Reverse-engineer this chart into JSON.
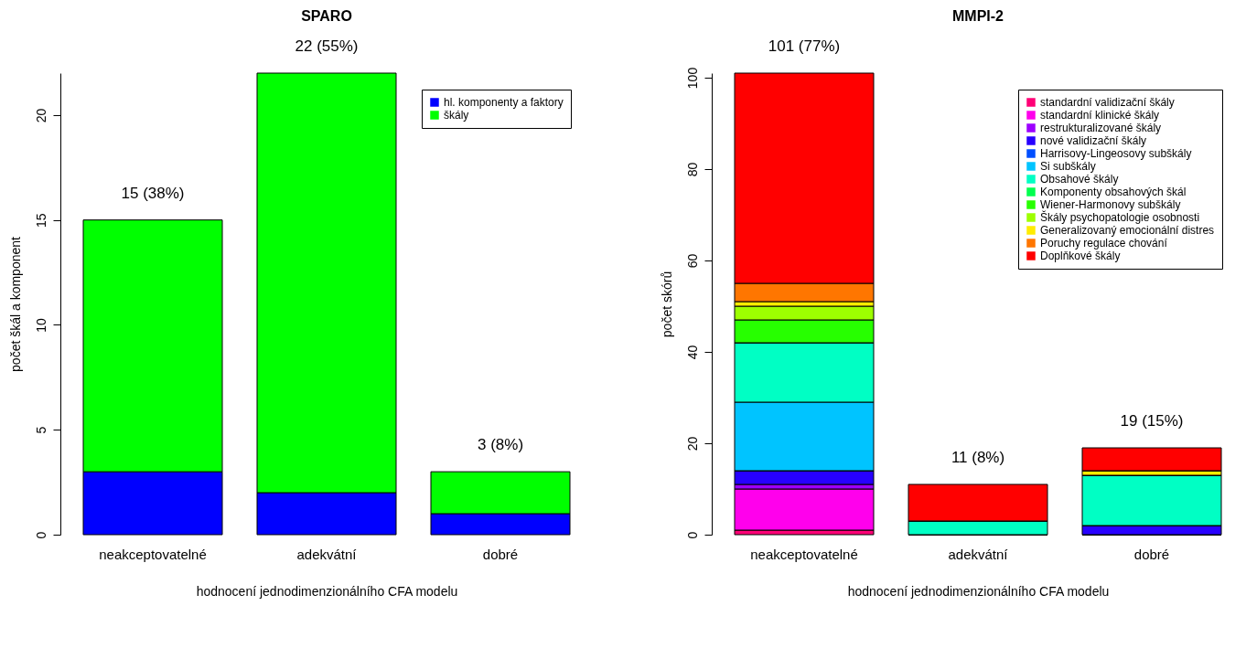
{
  "chart_data": [
    {
      "type": "bar",
      "title": "SPARO",
      "xlabel": "hodnocení jednodimenzionálního CFA modelu",
      "ylabel": "počet škál a komponent",
      "categories": [
        "neakceptovatelné",
        "adekvátní",
        "dobré"
      ],
      "stacked": true,
      "ylim": [
        0,
        22
      ],
      "yticks": [
        0,
        5,
        10,
        15,
        20
      ],
      "legend": "top right",
      "totals": [
        "15 (38%)",
        "22 (55%)",
        "3 (8%)"
      ],
      "series": [
        {
          "name": "hl. komponenty a faktory",
          "color": "#0000ff",
          "values": [
            3,
            2,
            1
          ]
        },
        {
          "name": "škály",
          "color": "#00ff00",
          "values": [
            12,
            20,
            2
          ]
        }
      ]
    },
    {
      "type": "bar",
      "title": "MMPI-2",
      "xlabel": "hodnocení jednodimenzionálního CFA modelu",
      "ylabel": "počet skórů",
      "categories": [
        "neakceptovatelné",
        "adekvátní",
        "dobré"
      ],
      "stacked": true,
      "ylim": [
        0,
        101
      ],
      "yticks": [
        0,
        20,
        40,
        60,
        80,
        100
      ],
      "legend": "top right",
      "totals": [
        "101 (77%)",
        "11 (8%)",
        "19 (15%)"
      ],
      "series": [
        {
          "name": "standardní validizační škály",
          "color": "#ff0076",
          "values": [
            1,
            0,
            0
          ]
        },
        {
          "name": "standardní klinické škály",
          "color": "#ff00ec",
          "values": [
            9,
            0,
            0
          ]
        },
        {
          "name": "restrukturalizované škály",
          "color": "#9d00ff",
          "values": [
            1,
            0,
            0
          ]
        },
        {
          "name": "nové validizační škály",
          "color": "#2700ff",
          "values": [
            3,
            0,
            2
          ]
        },
        {
          "name": "Harrisovy-Lingeosovy subškály",
          "color": "#004eff",
          "values": [
            0,
            0,
            0
          ]
        },
        {
          "name": "Si subškály",
          "color": "#00c4ff",
          "values": [
            15,
            0,
            0
          ]
        },
        {
          "name": "Obsahové škály",
          "color": "#00ffc4",
          "values": [
            13,
            3,
            11
          ]
        },
        {
          "name": "Komponenty obsahových škál",
          "color": "#00ff4e",
          "values": [
            0,
            0,
            0
          ]
        },
        {
          "name": "Wiener-Harmonovy subškály",
          "color": "#27ff00",
          "values": [
            5,
            0,
            0
          ]
        },
        {
          "name": "Škály psychopatologie osobnosti",
          "color": "#9dff00",
          "values": [
            3,
            0,
            0
          ]
        },
        {
          "name": "Generalizovaný emocionální distres",
          "color": "#ffec00",
          "values": [
            1,
            0,
            1
          ]
        },
        {
          "name": "Poruchy regulace chování",
          "color": "#ff7600",
          "values": [
            4,
            0,
            0
          ]
        },
        {
          "name": "Doplňkové škály",
          "color": "#ff0000",
          "values": [
            46,
            8,
            5
          ]
        }
      ]
    }
  ]
}
